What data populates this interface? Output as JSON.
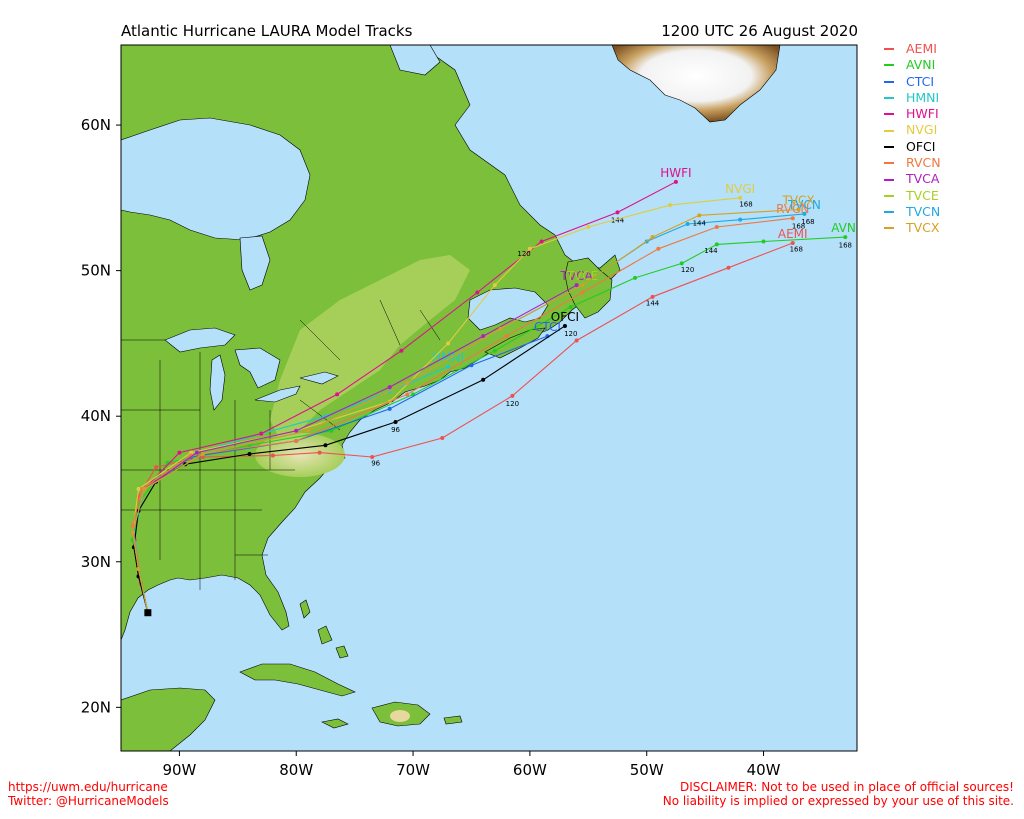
{
  "title": "Atlantic Hurricane LAURA Model Tracks",
  "timestamp": "1200 UTC 26 August 2020",
  "axes": {
    "lat_labels": [
      "60N",
      "50N",
      "40N",
      "30N",
      "20N"
    ],
    "lon_labels": [
      "90W",
      "80W",
      "70W",
      "60W",
      "50W",
      "40W"
    ]
  },
  "map_view": {
    "lon_min": -95,
    "lon_max": -32,
    "lat_min": 17,
    "lat_max": 65.5
  },
  "colors": {
    "ocean": "#b4e0fa",
    "land": "#7cbf3a",
    "land_light": "#b8d96a",
    "land_high": "#e8e4b8"
  },
  "legend": [
    {
      "name": "AEMI",
      "color": "#f05050"
    },
    {
      "name": "AVNI",
      "color": "#22cc22"
    },
    {
      "name": "CTCI",
      "color": "#2266ee"
    },
    {
      "name": "HMNI",
      "color": "#22c8c8"
    },
    {
      "name": "HWFI",
      "color": "#e0108c"
    },
    {
      "name": "NVGI",
      "color": "#e0cc40"
    },
    {
      "name": "OFCI",
      "color": "#000000"
    },
    {
      "name": "RVCN",
      "color": "#f07840"
    },
    {
      "name": "TVCA",
      "color": "#b020c0"
    },
    {
      "name": "TVCE",
      "color": "#a8d020"
    },
    {
      "name": "TVCN",
      "color": "#20a8e0"
    },
    {
      "name": "TVCX",
      "color": "#d8a020"
    }
  ],
  "initial_position": {
    "lon": -92.7,
    "lat": 26.5
  },
  "tracks": [
    {
      "name": "AEMI",
      "color": "#f05050",
      "end_label": "AEMI",
      "points": [
        [
          -92.7,
          26.5
        ],
        [
          -93.3,
          28.5
        ],
        [
          -93.8,
          31.5
        ],
        [
          -93.5,
          34.5
        ],
        [
          -92,
          36.5
        ],
        [
          -88,
          37.2
        ],
        [
          -82,
          37.3
        ],
        [
          -78,
          37.5
        ],
        [
          -73.5,
          37.2
        ],
        [
          -67.5,
          38.5
        ],
        [
          -61.5,
          41.4
        ],
        [
          -56,
          45.2
        ],
        [
          -49.5,
          48.2
        ],
        [
          -43,
          50.2
        ],
        [
          -37.5,
          51.9
        ]
      ],
      "labels": [
        {
          "lon": -73.2,
          "lat": 36.6,
          "text": "96"
        },
        {
          "lon": -61.5,
          "lat": 40.7,
          "text": "120"
        },
        {
          "lon": -49.5,
          "lat": 47.6,
          "text": "144"
        },
        {
          "lon": -37.2,
          "lat": 51.3,
          "text": "168"
        }
      ]
    },
    {
      "name": "AVNI",
      "color": "#22cc22",
      "end_label": "AVNI",
      "points": [
        [
          -92.7,
          26.5
        ],
        [
          -93.5,
          29
        ],
        [
          -94,
          31.5
        ],
        [
          -93.5,
          34
        ],
        [
          -91,
          36.8
        ],
        [
          -84,
          38
        ],
        [
          -77,
          39
        ],
        [
          -70,
          41.5
        ],
        [
          -63,
          44.5
        ],
        [
          -56.5,
          47.5
        ],
        [
          -51,
          49.5
        ],
        [
          -47,
          50.5
        ],
        [
          -44,
          51.8
        ],
        [
          -40,
          52
        ],
        [
          -33,
          52.3
        ]
      ],
      "labels": [
        {
          "lon": -46.5,
          "lat": 49.9,
          "text": "120"
        },
        {
          "lon": -44.5,
          "lat": 51.2,
          "text": "144"
        },
        {
          "lon": -33.0,
          "lat": 51.6,
          "text": "168"
        }
      ]
    },
    {
      "name": "CTCI",
      "color": "#2266ee",
      "end_label": "CTCI",
      "points": [
        [
          -92.7,
          26.5
        ],
        [
          -93.5,
          29.5
        ],
        [
          -94,
          32
        ],
        [
          -93,
          35
        ],
        [
          -89,
          37.2
        ],
        [
          -80,
          38.3
        ],
        [
          -72,
          40.5
        ],
        [
          -65,
          43.5
        ],
        [
          -58.5,
          45.5
        ]
      ],
      "labels": []
    },
    {
      "name": "HMNI",
      "color": "#22c8c8",
      "end_label": "HMNI",
      "points": [
        [
          -92.7,
          26.5
        ],
        [
          -93.5,
          29
        ],
        [
          -93.8,
          32
        ],
        [
          -93,
          35
        ],
        [
          -88.5,
          37.5
        ],
        [
          -83,
          38.8
        ],
        [
          -77.5,
          40
        ],
        [
          -72,
          41.7
        ],
        [
          -67,
          43.4
        ]
      ],
      "labels": []
    },
    {
      "name": "HWFI",
      "color": "#e0108c",
      "end_label": "HWFI",
      "points": [
        [
          -92.7,
          26.5
        ],
        [
          -93.5,
          29
        ],
        [
          -94,
          32
        ],
        [
          -93,
          35
        ],
        [
          -90,
          37.5
        ],
        [
          -83,
          38.8
        ],
        [
          -76.5,
          41.5
        ],
        [
          -71,
          44.5
        ],
        [
          -64.5,
          48.5
        ],
        [
          -59,
          52
        ],
        [
          -52.5,
          54
        ],
        [
          -47.5,
          56.1
        ]
      ],
      "labels": [
        {
          "lon": -52.5,
          "lat": 53.3,
          "text": "144"
        }
      ]
    },
    {
      "name": "NVGI",
      "color": "#e0cc40",
      "end_label": "NVGI",
      "points": [
        [
          -92.7,
          26.5
        ],
        [
          -93.5,
          29.5
        ],
        [
          -94,
          32
        ],
        [
          -93.5,
          35
        ],
        [
          -89,
          37.5
        ],
        [
          -80,
          39
        ],
        [
          -72,
          41
        ],
        [
          -67,
          45
        ],
        [
          -63,
          49
        ],
        [
          -60,
          51.5
        ],
        [
          -55,
          53
        ],
        [
          -48,
          54.5
        ],
        [
          -42,
          55
        ]
      ],
      "labels": [
        {
          "lon": -60.5,
          "lat": 51.0,
          "text": "120"
        },
        {
          "lon": -41.5,
          "lat": 54.4,
          "text": "168"
        }
      ]
    },
    {
      "name": "OFCI",
      "color": "#000000",
      "end_label": "OFCI",
      "points": [
        [
          -92.7,
          26.5
        ],
        [
          -93.5,
          29
        ],
        [
          -93.9,
          31
        ],
        [
          -93.5,
          33.5
        ],
        [
          -92,
          35.5
        ],
        [
          -89.5,
          36.7
        ],
        [
          -84,
          37.4
        ],
        [
          -77.5,
          38
        ],
        [
          -71.5,
          39.6
        ],
        [
          -64,
          42.5
        ],
        [
          -57,
          46.2
        ]
      ],
      "labels": [
        {
          "lon": -71.5,
          "lat": 38.9,
          "text": "96"
        },
        {
          "lon": -56.5,
          "lat": 45.5,
          "text": "120"
        }
      ]
    },
    {
      "name": "RVCN",
      "color": "#f07840",
      "end_label": "RVCN",
      "points": [
        [
          -92.7,
          26.5
        ],
        [
          -93.5,
          29.5
        ],
        [
          -94,
          32.5
        ],
        [
          -93.2,
          35
        ],
        [
          -89,
          37.3
        ],
        [
          -80,
          38.3
        ],
        [
          -70.5,
          41.5
        ],
        [
          -62,
          45.5
        ],
        [
          -55.5,
          48.5
        ],
        [
          -49,
          51.5
        ],
        [
          -44,
          53
        ],
        [
          -37.5,
          53.6
        ]
      ],
      "labels": [
        {
          "lon": -37,
          "lat": 52.9,
          "text": "168"
        }
      ]
    },
    {
      "name": "TVCA",
      "color": "#b020c0",
      "end_label": "TVCA",
      "points": [
        [
          -92.7,
          26.5
        ],
        [
          -93.5,
          29.5
        ],
        [
          -94,
          32
        ],
        [
          -93,
          35
        ],
        [
          -88.5,
          37.5
        ],
        [
          -80,
          39
        ],
        [
          -72,
          42
        ],
        [
          -64,
          45.5
        ],
        [
          -56,
          49
        ]
      ],
      "labels": []
    },
    {
      "name": "TVCE",
      "color": "#a8d020",
      "end_label": "TVCE",
      "points": [
        [
          -92.7,
          26.5
        ],
        [
          -93.5,
          29.5
        ],
        [
          -94,
          32
        ],
        [
          -93,
          35
        ],
        [
          -88,
          37.4
        ],
        [
          -79,
          39
        ],
        [
          -70.5,
          42.3
        ],
        [
          -62.5,
          46
        ],
        [
          -55.5,
          49
        ]
      ],
      "labels": []
    },
    {
      "name": "TVCN",
      "color": "#20a8e0",
      "end_label": "TVCN",
      "points": [
        [
          -92.7,
          26.5
        ],
        [
          -93.5,
          29.5
        ],
        [
          -94,
          32
        ],
        [
          -93,
          35
        ],
        [
          -88,
          37.4
        ],
        [
          -79,
          39
        ],
        [
          -70.5,
          42.3
        ],
        [
          -62.5,
          46
        ],
        [
          -55.5,
          49
        ],
        [
          -50,
          52
        ],
        [
          -46.5,
          53.2
        ],
        [
          -42,
          53.5
        ],
        [
          -36.5,
          53.9
        ]
      ],
      "labels": [
        {
          "lon": -36.2,
          "lat": 53.2,
          "text": "168"
        }
      ]
    },
    {
      "name": "TVCX",
      "color": "#d8a020",
      "end_label": "TVCX",
      "points": [
        [
          -92.7,
          26.5
        ],
        [
          -93.5,
          29.5
        ],
        [
          -94,
          32
        ],
        [
          -93,
          35
        ],
        [
          -88,
          37.4
        ],
        [
          -79,
          39
        ],
        [
          -70.5,
          42.3
        ],
        [
          -62.5,
          46
        ],
        [
          -55.5,
          49
        ],
        [
          -49.5,
          52.3
        ],
        [
          -45.5,
          53.8
        ],
        [
          -37,
          54.2
        ]
      ],
      "labels": [
        {
          "lon": -45.5,
          "lat": 53.1,
          "text": "144"
        }
      ]
    }
  ],
  "footer": {
    "url": "https://uwm.edu/hurricane",
    "twitter": "Twitter: @HurricaneModels",
    "disclaimer": "DISCLAIMER: Not to be used in place of official sources!",
    "liability": "No liability is implied or expressed by your use of this site."
  }
}
